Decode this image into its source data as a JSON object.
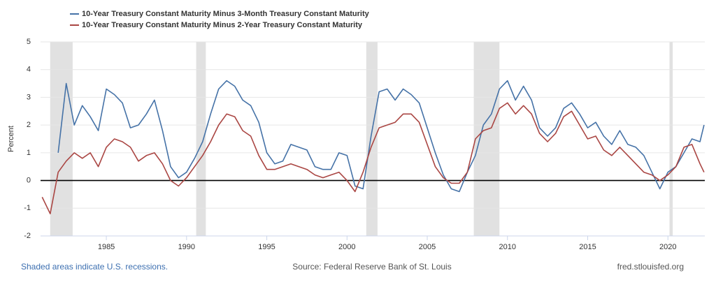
{
  "chart_data": {
    "type": "line",
    "legend": [],
    "ylabel": "Percent",
    "note": "Shaded areas indicate U.S. recessions.",
    "source": "Source: Federal Reserve Bank of St. Louis",
    "site": "fred.stlouisfed.org",
    "xlim": [
      1980.9,
      2022.3
    ],
    "xticks": [
      1985,
      1990,
      1995,
      2000,
      2005,
      2010,
      2015,
      2020
    ],
    "ylim": [
      -2,
      5
    ],
    "yticks": [
      -2,
      -1,
      0,
      1,
      2,
      3,
      4,
      5
    ],
    "grid": true,
    "legend_position": "top-left",
    "recession_color": "#e1e1e1",
    "recessions": [
      [
        1981.5,
        1982.9
      ],
      [
        1990.6,
        1991.2
      ],
      [
        2001.2,
        2001.9
      ],
      [
        2007.9,
        2009.5
      ],
      [
        2020.1,
        2020.3
      ]
    ],
    "x": [
      1981.0,
      1981.5,
      1982.0,
      1982.5,
      1983.0,
      1983.5,
      1984.0,
      1984.5,
      1985.0,
      1985.5,
      1986.0,
      1986.5,
      1987.0,
      1987.5,
      1988.0,
      1988.5,
      1989.0,
      1989.5,
      1990.0,
      1990.5,
      1991.0,
      1991.5,
      1992.0,
      1992.5,
      1993.0,
      1993.5,
      1994.0,
      1994.5,
      1995.0,
      1995.5,
      1996.0,
      1996.5,
      1997.0,
      1997.5,
      1998.0,
      1998.5,
      1999.0,
      1999.5,
      2000.0,
      2000.5,
      2001.0,
      2001.5,
      2002.0,
      2002.5,
      2003.0,
      2003.5,
      2004.0,
      2004.5,
      2005.0,
      2005.5,
      2006.0,
      2006.5,
      2007.0,
      2007.5,
      2008.0,
      2008.5,
      2009.0,
      2009.5,
      2010.0,
      2010.5,
      2011.0,
      2011.5,
      2012.0,
      2012.5,
      2013.0,
      2013.5,
      2014.0,
      2014.5,
      2015.0,
      2015.5,
      2016.0,
      2016.5,
      2017.0,
      2017.5,
      2018.0,
      2018.5,
      2019.0,
      2019.5,
      2020.0,
      2020.5,
      2021.0,
      2021.5,
      2022.0,
      2022.25
    ],
    "series": [
      {
        "name": "10-Year Treasury Constant Maturity Minus 3-Month Treasury Constant Maturity",
        "color": "#4572a7",
        "values": [
          null,
          null,
          1.0,
          3.5,
          2.0,
          2.7,
          2.3,
          1.8,
          3.3,
          3.1,
          2.8,
          1.9,
          2.0,
          2.4,
          2.9,
          1.8,
          0.5,
          0.1,
          0.3,
          0.8,
          1.4,
          2.4,
          3.3,
          3.6,
          3.4,
          2.9,
          2.7,
          2.1,
          1.0,
          0.6,
          0.7,
          1.3,
          1.2,
          1.1,
          0.5,
          0.4,
          0.4,
          1.0,
          0.9,
          -0.2,
          -0.3,
          1.6,
          3.2,
          3.3,
          2.9,
          3.3,
          3.1,
          2.8,
          1.9,
          1.0,
          0.2,
          -0.3,
          -0.4,
          0.3,
          0.9,
          2.0,
          2.4,
          3.3,
          3.6,
          2.9,
          3.4,
          2.9,
          1.9,
          1.6,
          1.9,
          2.6,
          2.8,
          2.4,
          1.9,
          2.1,
          1.6,
          1.3,
          1.8,
          1.3,
          1.2,
          0.9,
          0.3,
          -0.3,
          0.3,
          0.5,
          1.0,
          1.5,
          1.4,
          2.0
        ]
      },
      {
        "name": "10-Year Treasury Constant Maturity Minus 2-Year Treasury Constant Maturity",
        "color": "#aa4643",
        "values": [
          -0.6,
          -1.2,
          0.3,
          0.7,
          1.0,
          0.8,
          1.0,
          0.5,
          1.2,
          1.5,
          1.4,
          1.2,
          0.7,
          0.9,
          1.0,
          0.6,
          0.0,
          -0.2,
          0.1,
          0.5,
          0.9,
          1.4,
          2.0,
          2.4,
          2.3,
          1.8,
          1.6,
          0.9,
          0.4,
          0.4,
          0.5,
          0.6,
          0.5,
          0.4,
          0.2,
          0.1,
          0.2,
          0.3,
          0.0,
          -0.4,
          0.3,
          1.2,
          1.9,
          2.0,
          2.1,
          2.4,
          2.4,
          2.1,
          1.3,
          0.5,
          0.1,
          -0.1,
          -0.1,
          0.3,
          1.5,
          1.8,
          1.9,
          2.6,
          2.8,
          2.4,
          2.7,
          2.4,
          1.7,
          1.4,
          1.7,
          2.3,
          2.5,
          2.0,
          1.5,
          1.6,
          1.1,
          0.9,
          1.2,
          0.9,
          0.6,
          0.3,
          0.2,
          0.0,
          0.2,
          0.5,
          1.2,
          1.3,
          0.6,
          0.3
        ]
      }
    ]
  }
}
